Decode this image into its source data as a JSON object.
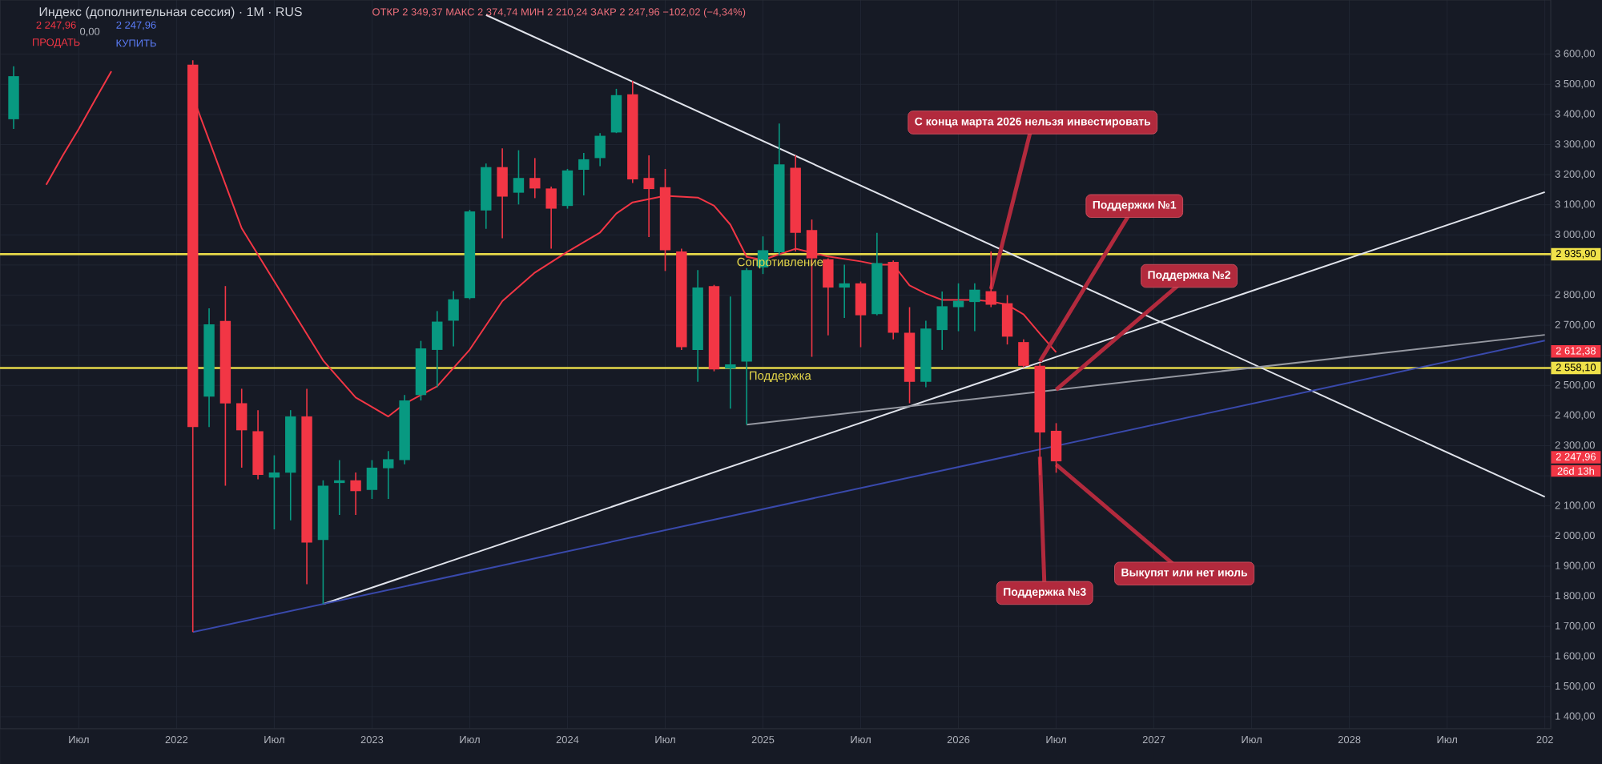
{
  "chart_data": {
    "type": "candlestick",
    "title": "Индекс (дополнительная сессия) · 1M · RUS",
    "subtitle": "ОТКР 2 349,37 МАКС 2 374,74 МИН 2 210,24 ЗАКР 2 247,96 −102,02 (−4,34%)",
    "x": [
      "2021-03",
      "2022-02",
      "2022-03",
      "2022-04",
      "2022-05",
      "2022-06",
      "2022-07",
      "2022-08",
      "2022-09",
      "2022-10",
      "2022-11",
      "2022-12",
      "2023-01",
      "2023-02",
      "2023-03",
      "2023-04",
      "2023-05",
      "2023-06",
      "2023-07",
      "2023-08",
      "2023-09",
      "2023-10",
      "2023-11",
      "2023-12",
      "2024-01",
      "2024-02",
      "2024-03",
      "2024-04",
      "2024-05",
      "2024-06",
      "2024-07",
      "2024-08",
      "2024-09",
      "2024-10",
      "2024-11",
      "2024-12",
      "2025-01",
      "2025-02",
      "2025-03",
      "2025-04",
      "2025-05",
      "2025-06",
      "2025-07",
      "2025-08",
      "2025-09",
      "2025-10",
      "2025-11",
      "2025-12",
      "2026-01",
      "2026-02",
      "2026-03",
      "2026-04",
      "2026-05",
      "2026-06",
      "2026-07"
    ],
    "ohlc": [
      [
        3384,
        3560,
        3352,
        3527
      ],
      [
        3565,
        3580,
        1681,
        2362
      ],
      [
        2463,
        2756,
        2362,
        2703
      ],
      [
        2714,
        2830,
        2167,
        2440
      ],
      [
        2441,
        2489,
        2227,
        2351
      ],
      [
        2348,
        2418,
        2188,
        2203
      ],
      [
        2194,
        2268,
        2022,
        2211
      ],
      [
        2210,
        2418,
        2052,
        2397
      ],
      [
        2397,
        2489,
        1840,
        1978
      ],
      [
        1987,
        2185,
        1774,
        2167
      ],
      [
        2176,
        2252,
        2070,
        2185
      ],
      [
        2185,
        2211,
        2070,
        2149
      ],
      [
        2153,
        2252,
        2123,
        2227
      ],
      [
        2225,
        2282,
        2123,
        2255
      ],
      [
        2252,
        2468,
        2238,
        2450
      ],
      [
        2468,
        2648,
        2450,
        2623
      ],
      [
        2618,
        2747,
        2494,
        2712
      ],
      [
        2715,
        2813,
        2630,
        2786
      ],
      [
        2790,
        3083,
        2786,
        3078
      ],
      [
        3081,
        3237,
        3020,
        3225
      ],
      [
        3225,
        3287,
        2989,
        3127
      ],
      [
        3140,
        3281,
        3101,
        3189
      ],
      [
        3189,
        3255,
        3122,
        3154
      ],
      [
        3154,
        3160,
        2954,
        3087
      ],
      [
        3096,
        3219,
        3087,
        3214
      ],
      [
        3216,
        3272,
        3131,
        3251
      ],
      [
        3255,
        3338,
        3228,
        3329
      ],
      [
        3340,
        3485,
        3338,
        3464
      ],
      [
        3467,
        3511,
        3172,
        3184
      ],
      [
        3189,
        3264,
        2993,
        3152
      ],
      [
        3158,
        3219,
        2880,
        2949
      ],
      [
        2945,
        2954,
        2618,
        2627
      ],
      [
        2618,
        2883,
        2512,
        2825
      ],
      [
        2830,
        2834,
        2547,
        2553
      ],
      [
        2556,
        2795,
        2423,
        2570
      ],
      [
        2579,
        2890,
        2370,
        2883
      ],
      [
        2892,
        2995,
        2870,
        2949
      ],
      [
        2942,
        3370,
        2933,
        3234
      ],
      [
        3223,
        3264,
        2945,
        3007
      ],
      [
        3016,
        3051,
        2595,
        2922
      ],
      [
        2919,
        2922,
        2666,
        2825
      ],
      [
        2825,
        2901,
        2724,
        2839
      ],
      [
        2839,
        2845,
        2627,
        2733
      ],
      [
        2737,
        3007,
        2733,
        2906
      ],
      [
        2910,
        2915,
        2653,
        2675
      ],
      [
        2675,
        2760,
        2441,
        2512
      ],
      [
        2512,
        2715,
        2494,
        2689
      ],
      [
        2684,
        2812,
        2618,
        2763
      ],
      [
        2760,
        2839,
        2680,
        2781
      ],
      [
        2777,
        2839,
        2680,
        2818
      ],
      [
        2813,
        2945,
        2760,
        2768
      ],
      [
        2773,
        2800,
        2636,
        2662
      ],
      [
        2644,
        2653,
        2560,
        2565
      ],
      [
        2565,
        2574,
        2202,
        2344
      ],
      [
        2349.37,
        2374.74,
        2210.24,
        2247.96
      ]
    ],
    "colors": [
      "#089981",
      "#f23645",
      "#089981",
      "#f23645",
      "#f23645",
      "#f23645",
      "#089981",
      "#089981",
      "#f23645",
      "#089981",
      "#089981",
      "#f23645",
      "#089981",
      "#089981",
      "#089981",
      "#089981",
      "#089981",
      "#089981",
      "#089981",
      "#089981",
      "#f23645",
      "#089981",
      "#f23645",
      "#f23645",
      "#089981",
      "#089981",
      "#089981",
      "#089981",
      "#f23645",
      "#f23645",
      "#f23645",
      "#f23645",
      "#089981",
      "#f23645",
      "#089981",
      "#089981",
      "#089981",
      "#089981",
      "#f23645",
      "#f23645",
      "#f23645",
      "#089981",
      "#f23645",
      "#089981",
      "#f23645",
      "#f23645",
      "#089981",
      "#089981",
      "#089981",
      "#089981",
      "#f23645",
      "#f23645",
      "#f23645",
      "#f23645",
      "#f23645"
    ],
    "series": [
      {
        "type": "line",
        "color": "#f23645",
        "x": [
          "2021-05",
          "2021-06",
          "2021-07",
          "2021-08",
          "2021-09",
          "2021-12",
          "2022-02",
          "2022-05",
          "2022-08",
          "2022-10",
          "2022-12",
          "2023-02",
          "2023-03",
          "2023-05",
          "2023-07",
          "2023-09",
          "2023-11",
          "2024-01",
          "2024-03",
          "2024-04",
          "2024-05",
          "2024-07",
          "2024-09",
          "2024-10",
          "2024-11",
          "2024-12",
          "2025-01",
          "2025-03",
          "2025-05",
          "2025-07",
          "2025-08",
          "2025-09",
          "2025-10",
          "2025-11",
          "2025-12",
          "2026-02",
          "2026-03",
          "2026-04",
          "2026-05",
          "2026-06",
          "2026-07"
        ],
        "values": [
          3166,
          3262,
          3352,
          3448,
          3543,
          null,
          3460,
          3022,
          2758,
          2583,
          2460,
          2397,
          2439,
          2497,
          2619,
          2780,
          2875,
          2944,
          3008,
          3071,
          3108,
          3130,
          3124,
          3097,
          3034,
          2927,
          2917,
          2954,
          2928,
          2912,
          2901,
          2901,
          2832,
          2805,
          2784,
          2784,
          2779,
          2768,
          2736,
          2672,
          2610
        ]
      },
      {
        "type": "line",
        "color": "#e0e3eb",
        "x": [
          "2023-08",
          "2029-01"
        ],
        "values": [
          3730,
          2130
        ]
      },
      {
        "type": "line",
        "color": "#e0e3eb",
        "x": [
          "2022-10",
          "2029-01"
        ],
        "values": [
          1774,
          3142
        ]
      },
      {
        "type": "line",
        "color": "#3949ab",
        "x": [
          "2022-02",
          "2029-01"
        ],
        "values": [
          1681,
          2649
        ]
      },
      {
        "type": "line",
        "color": "#9598a1",
        "x": [
          "2024-12",
          "2029-01"
        ],
        "values": [
          2370,
          2668
        ]
      }
    ],
    "ref_lines": [
      {
        "axis": "y",
        "value": 2935.9,
        "label": "Сопротивление",
        "color": "#e6d84a"
      },
      {
        "axis": "y",
        "value": 2558.1,
        "label": "Поддержка",
        "color": "#e6d84a"
      }
    ],
    "annotations": [
      {
        "text": "С конца марта 2026 нельзя инвестировать",
        "x": "2026-03",
        "y": 2820
      },
      {
        "text": "Поддержки №1",
        "x": "2026-06",
        "y": 2580
      },
      {
        "text": "Поддержка №2",
        "x": "2026-07",
        "y": 2486
      },
      {
        "text": "Поддержка №3",
        "x": "2026-06",
        "y": 2263
      },
      {
        "text": "Выкупят или нет июль",
        "x": "2026-07",
        "y": 2237
      },
      {
        "text": "2 935,90",
        "x": "2029-01-12",
        "y": 2935.9
      },
      "2 612,38",
      {
        "text": "2 558,10",
        "x": "2029-01-12",
        "y": 2558.1
      },
      "2 247,96",
      "26d 13h",
      "2 247,96",
      "ПРОДАТЬ",
      "0,00",
      "2 247,96",
      "КУПИТЬ"
    ],
    "xlim": [
      "2021-02-06",
      "2029-01-12"
    ],
    "ylim": [
      1360,
      3780
    ],
    "xticks": [
      {
        "value": "2021-07",
        "label": "Июл"
      },
      {
        "value": "2022-01",
        "label": "2022"
      },
      {
        "value": "2022-07",
        "label": "Июл"
      },
      {
        "value": "2023-01",
        "label": "2023"
      },
      {
        "value": "2023-07",
        "label": "Июл"
      },
      {
        "value": "2024-01",
        "label": "2024"
      },
      {
        "value": "2024-07",
        "label": "Июл"
      },
      {
        "value": "2025-01",
        "label": "2025"
      },
      {
        "value": "2025-07",
        "label": "Июл"
      },
      {
        "value": "2026-01",
        "label": "2026"
      },
      {
        "value": "2026-07",
        "label": "Июл"
      },
      {
        "value": "2027-01",
        "label": "2027"
      },
      {
        "value": "2027-07",
        "label": "Июл"
      },
      {
        "value": "2028-01",
        "label": "2028"
      },
      {
        "value": "2028-07",
        "label": "Июл"
      },
      {
        "value": "2029-01",
        "label": "202"
      }
    ],
    "yticks": [
      {
        "value": 1400,
        "label": "1 400,00"
      },
      {
        "value": 1500,
        "label": "1 500,00"
      },
      {
        "value": 1600,
        "label": "1 600,00"
      },
      {
        "value": 1700,
        "label": "1 700,00"
      },
      {
        "value": 1800,
        "label": "1 800,00"
      },
      {
        "value": 1900,
        "label": "1 900,00"
      },
      {
        "value": 2000,
        "label": "2 000,00"
      },
      {
        "value": 2100,
        "label": "2 100,00"
      },
      {
        "value": 2200,
        "label": null
      },
      {
        "value": 2300,
        "label": "2 300,00"
      },
      {
        "value": 2400,
        "label": "2 400,00"
      },
      {
        "value": 2500,
        "label": "2 500,00"
      },
      {
        "value": 2600,
        "label": null
      },
      {
        "value": 2700,
        "label": "2 700,00"
      },
      {
        "value": 2800,
        "label": "2 800,00"
      },
      {
        "value": 2900,
        "label": null
      },
      {
        "value": 3000,
        "label": "3 000,00"
      },
      {
        "value": 3100,
        "label": "3 100,00"
      },
      {
        "value": 3200,
        "label": "3 200,00"
      },
      {
        "value": 3300,
        "label": "3 300,00"
      },
      {
        "value": 3400,
        "label": "3 400,00"
      },
      {
        "value": 3500,
        "label": "3 500,00"
      },
      {
        "value": 3600,
        "label": "3 600,00"
      }
    ],
    "grid": true
  }
}
